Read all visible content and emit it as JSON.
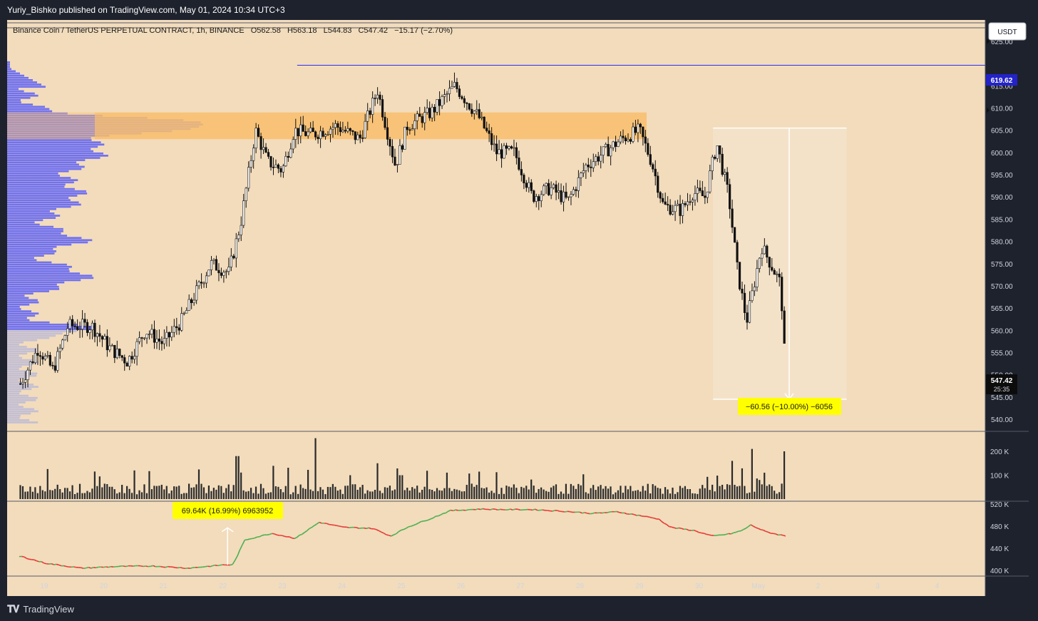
{
  "header": {
    "published": "Yuriy_Bishko published on TradingView.com, May 01, 2024 10:34 UTC+3"
  },
  "legend": {
    "symbol": "Binance Coin / TetherUS PERPETUAL CONTRACT, 1h, BINANCE",
    "open": "O562.58",
    "high": "H563.18",
    "low": "L544.83",
    "close": "C547.42",
    "change": "−15.17 (−2.70%)"
  },
  "currency_button": "USDT",
  "brand": {
    "name": "TradingView"
  },
  "colors": {
    "chart_bg": "#f2dcbc",
    "page_bg": "#1e222d",
    "volume_profile": "#6a6cf0",
    "zone": "#f9be6c",
    "level_line": "#2d2df5",
    "callout": "#ffff00",
    "up": "#4caf50",
    "down": "#e53935"
  },
  "labels": {
    "level_price": "619.62",
    "last_price": "547.42",
    "countdown": "25:35",
    "measure": "−60.56 (−10.00%) −6056",
    "obv_measure": "69.64K (16.99%) 6963952"
  },
  "chart_data": [
    {
      "type": "candlestick",
      "timeframe": "1h",
      "y_ticks": [
        "540.00",
        "545.00",
        "550.00",
        "555.00",
        "560.00",
        "565.00",
        "570.00",
        "575.00",
        "580.00",
        "585.00",
        "590.00",
        "595.00",
        "600.00",
        "605.00",
        "610.00",
        "615.00",
        "620.00",
        "625.00"
      ],
      "x_ticks": [
        "19",
        "20",
        "21",
        "22",
        "23",
        "24",
        "25",
        "26",
        "27",
        "28",
        "29",
        "30",
        "May",
        "2",
        "3",
        "4"
      ],
      "ylim": [
        537,
        629
      ],
      "close_path": [
        {
          "d": 18.6,
          "p": 548
        },
        {
          "d": 18.9,
          "p": 556
        },
        {
          "d": 19.15,
          "p": 551
        },
        {
          "d": 19.4,
          "p": 561
        },
        {
          "d": 19.8,
          "p": 561
        },
        {
          "d": 20.1,
          "p": 556
        },
        {
          "d": 20.4,
          "p": 553
        },
        {
          "d": 20.7,
          "p": 560
        },
        {
          "d": 21.0,
          "p": 557
        },
        {
          "d": 21.3,
          "p": 562
        },
        {
          "d": 21.8,
          "p": 575
        },
        {
          "d": 22.1,
          "p": 573
        },
        {
          "d": 22.3,
          "p": 584
        },
        {
          "d": 22.55,
          "p": 605
        },
        {
          "d": 22.75,
          "p": 598
        },
        {
          "d": 23.0,
          "p": 596
        },
        {
          "d": 23.2,
          "p": 605
        },
        {
          "d": 23.5,
          "p": 604
        },
        {
          "d": 23.9,
          "p": 606
        },
        {
          "d": 24.3,
          "p": 603
        },
        {
          "d": 24.6,
          "p": 614
        },
        {
          "d": 24.9,
          "p": 597
        },
        {
          "d": 25.1,
          "p": 606
        },
        {
          "d": 25.5,
          "p": 609
        },
        {
          "d": 25.9,
          "p": 615
        },
        {
          "d": 26.3,
          "p": 608
        },
        {
          "d": 26.6,
          "p": 600
        },
        {
          "d": 26.9,
          "p": 600
        },
        {
          "d": 27.2,
          "p": 590
        },
        {
          "d": 27.5,
          "p": 592
        },
        {
          "d": 27.8,
          "p": 589
        },
        {
          "d": 28.1,
          "p": 597
        },
        {
          "d": 28.4,
          "p": 600
        },
        {
          "d": 28.7,
          "p": 603
        },
        {
          "d": 29.0,
          "p": 605
        },
        {
          "d": 29.2,
          "p": 598
        },
        {
          "d": 29.4,
          "p": 588
        },
        {
          "d": 29.7,
          "p": 587
        },
        {
          "d": 29.9,
          "p": 591
        },
        {
          "d": 30.1,
          "p": 590
        },
        {
          "d": 30.3,
          "p": 602
        },
        {
          "d": 30.5,
          "p": 590
        },
        {
          "d": 30.65,
          "p": 573
        },
        {
          "d": 30.8,
          "p": 562
        },
        {
          "d": 30.95,
          "p": 572
        },
        {
          "d": 31.05,
          "p": 579
        },
        {
          "d": 31.2,
          "p": 575
        },
        {
          "d": 31.35,
          "p": 571
        },
        {
          "d": 31.42,
          "p": 562
        },
        {
          "d": 31.45,
          "p": 547.4
        }
      ],
      "resistance_level": 619.62,
      "supply_zone": [
        603,
        609
      ],
      "measure": {
        "from": 605.5,
        "to": 544.5,
        "d_start": 30.2,
        "d_end": 32.0
      }
    },
    {
      "type": "bar",
      "name": "Volume",
      "y_ticks": [
        "100 K",
        "200 K"
      ],
      "ylim": [
        0,
        270
      ],
      "spikes": [
        {
          "d": 22.25,
          "v": 180
        },
        {
          "d": 23.55,
          "v": 255
        },
        {
          "d": 24.6,
          "v": 150
        },
        {
          "d": 25.0,
          "v": 100
        },
        {
          "d": 26.3,
          "v": 115
        },
        {
          "d": 30.55,
          "v": 160
        },
        {
          "d": 30.9,
          "v": 210
        },
        {
          "d": 31.45,
          "v": 200
        }
      ]
    },
    {
      "type": "line",
      "name": "OBV",
      "y_ticks": [
        "400 K",
        "440 K",
        "480 K",
        "520 K"
      ],
      "ylim": [
        392,
        528
      ],
      "path": [
        {
          "d": 18.6,
          "v": 425
        },
        {
          "d": 19.0,
          "v": 413
        },
        {
          "d": 19.6,
          "v": 404
        },
        {
          "d": 20.2,
          "v": 407
        },
        {
          "d": 20.8,
          "v": 408
        },
        {
          "d": 21.4,
          "v": 404
        },
        {
          "d": 22.0,
          "v": 410
        },
        {
          "d": 22.15,
          "v": 410
        },
        {
          "d": 22.35,
          "v": 455
        },
        {
          "d": 22.8,
          "v": 467
        },
        {
          "d": 23.2,
          "v": 458
        },
        {
          "d": 23.6,
          "v": 487
        },
        {
          "d": 24.0,
          "v": 478
        },
        {
          "d": 24.5,
          "v": 476
        },
        {
          "d": 24.8,
          "v": 462
        },
        {
          "d": 25.1,
          "v": 479
        },
        {
          "d": 25.5,
          "v": 495
        },
        {
          "d": 25.8,
          "v": 508
        },
        {
          "d": 26.3,
          "v": 511
        },
        {
          "d": 26.7,
          "v": 510
        },
        {
          "d": 27.2,
          "v": 510
        },
        {
          "d": 27.7,
          "v": 507
        },
        {
          "d": 28.2,
          "v": 503
        },
        {
          "d": 28.6,
          "v": 506
        },
        {
          "d": 29.0,
          "v": 499
        },
        {
          "d": 29.3,
          "v": 493
        },
        {
          "d": 29.5,
          "v": 478
        },
        {
          "d": 29.9,
          "v": 472
        },
        {
          "d": 30.2,
          "v": 462
        },
        {
          "d": 30.5,
          "v": 466
        },
        {
          "d": 30.7,
          "v": 472
        },
        {
          "d": 30.85,
          "v": 482
        },
        {
          "d": 31.1,
          "v": 470
        },
        {
          "d": 31.3,
          "v": 465
        },
        {
          "d": 31.45,
          "v": 462
        }
      ]
    }
  ]
}
